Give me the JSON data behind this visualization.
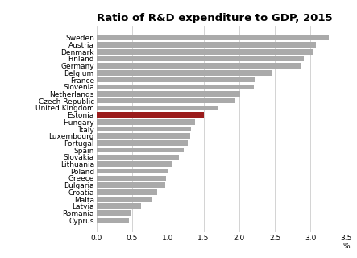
{
  "title": "Ratio of R&D expenditure to GDP, 2015",
  "categories": [
    "Sweden",
    "Austria",
    "Denmark",
    "Finland",
    "Germany",
    "Belgium",
    "France",
    "Slovenia",
    "Netherlands",
    "Czech Republic",
    "United Kingdom",
    "Estonia",
    "Hungary",
    "Italy",
    "Luxembourg",
    "Portugal",
    "Spain",
    "Slovakia",
    "Lithuania",
    "Poland",
    "Greece",
    "Bulgaria",
    "Croatia",
    "Malta",
    "Latvia",
    "Romania",
    "Cyprus"
  ],
  "values": [
    3.26,
    3.07,
    3.03,
    2.9,
    2.87,
    2.45,
    2.23,
    2.21,
    2.01,
    1.95,
    1.7,
    1.5,
    1.38,
    1.33,
    1.31,
    1.28,
    1.22,
    1.15,
    1.05,
    1.0,
    0.97,
    0.96,
    0.85,
    0.77,
    0.63,
    0.49,
    0.46
  ],
  "bar_color_default": "#aaaaaa",
  "bar_color_highlight": "#9B1C1C",
  "highlight_index": 11,
  "xlim": [
    0,
    3.5
  ],
  "xticks": [
    0.0,
    0.5,
    1.0,
    1.5,
    2.0,
    2.5,
    3.0,
    3.5
  ],
  "xlabel_unit": "%",
  "title_fontsize": 9.5,
  "tick_fontsize": 6.5,
  "background_color": "#ffffff",
  "grid_color": "#cccccc"
}
